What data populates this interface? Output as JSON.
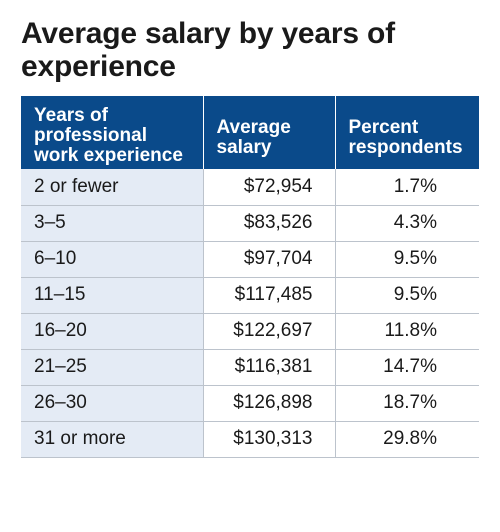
{
  "title": "Average salary by years of experience",
  "table": {
    "headers": {
      "years": [
        "Years of",
        "professional",
        "work experience"
      ],
      "salary": [
        "Average",
        "salary"
      ],
      "percent": [
        "Percent",
        "respondents"
      ]
    },
    "rows": [
      {
        "years": "2 or fewer",
        "salary": "$72,954",
        "percent": "1.7%"
      },
      {
        "years": "3–5",
        "salary": "$83,526",
        "percent": "4.3%"
      },
      {
        "years": "6–10",
        "salary": "$97,704",
        "percent": "9.5%"
      },
      {
        "years": "11–15",
        "salary": "$117,485",
        "percent": "9.5%"
      },
      {
        "years": "16–20",
        "salary": "$122,697",
        "percent": "11.8%"
      },
      {
        "years": "21–25",
        "salary": "$116,381",
        "percent": "14.7%"
      },
      {
        "years": "26–30",
        "salary": "$126,898",
        "percent": "18.7%"
      },
      {
        "years": "31 or more",
        "salary": "$130,313",
        "percent": "29.8%"
      }
    ]
  },
  "colors": {
    "header_bg": "#0a4a8a",
    "first_column_bg": "#e4ebf5"
  }
}
